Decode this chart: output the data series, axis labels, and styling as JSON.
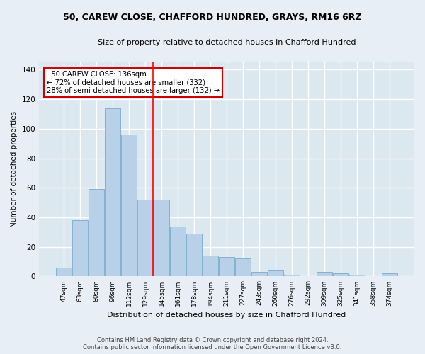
{
  "title1": "50, CAREW CLOSE, CHAFFORD HUNDRED, GRAYS, RM16 6RZ",
  "title2": "Size of property relative to detached houses in Chafford Hundred",
  "xlabel": "Distribution of detached houses by size in Chafford Hundred",
  "ylabel": "Number of detached properties",
  "footer1": "Contains HM Land Registry data © Crown copyright and database right 2024.",
  "footer2": "Contains public sector information licensed under the Open Government Licence v3.0.",
  "categories": [
    "47sqm",
    "63sqm",
    "80sqm",
    "96sqm",
    "112sqm",
    "129sqm",
    "145sqm",
    "161sqm",
    "178sqm",
    "194sqm",
    "211sqm",
    "227sqm",
    "243sqm",
    "260sqm",
    "276sqm",
    "292sqm",
    "309sqm",
    "325sqm",
    "341sqm",
    "358sqm",
    "374sqm"
  ],
  "values": [
    6,
    38,
    59,
    114,
    96,
    52,
    52,
    34,
    29,
    14,
    13,
    12,
    3,
    4,
    1,
    0,
    3,
    2,
    1,
    0,
    2
  ],
  "bar_color": "#b8d0e8",
  "bar_edge_color": "#7aaace",
  "annotation_text": "  50 CAREW CLOSE: 136sqm\n← 72% of detached houses are smaller (332)\n28% of semi-detached houses are larger (132) →",
  "annotation_box_color": "#ffffff",
  "annotation_box_edge_color": "#cc0000",
  "fig_bg_color": "#e8eef5",
  "ax_bg_color": "#dce8f0",
  "grid_color": "#ffffff",
  "ylim": [
    0,
    145
  ],
  "yticks": [
    0,
    20,
    40,
    60,
    80,
    100,
    120,
    140
  ],
  "red_line_x": 5.47
}
